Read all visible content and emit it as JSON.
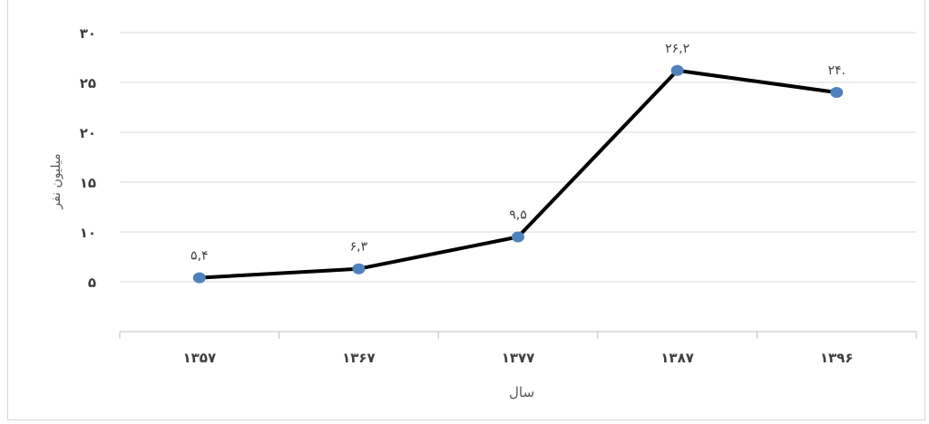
{
  "chart_data": {
    "type": "line",
    "categories": [
      "۱۳۵۷",
      "۱۳۶۷",
      "۱۳۷۷",
      "۱۳۸۷",
      "۱۳۹۶"
    ],
    "series": [
      {
        "values": [
          5.4,
          6.3,
          9.5,
          26.2,
          24
        ],
        "data_labels": [
          "۵,۴",
          "۶,۳",
          "۹,۵",
          "۲۶,۲",
          "۲۴."
        ]
      }
    ],
    "y_ticks": [
      {
        "value": 5,
        "label": "۵"
      },
      {
        "value": 10,
        "label": "۱۰"
      },
      {
        "value": 15,
        "label": "۱۵"
      },
      {
        "value": 20,
        "label": "۲۰"
      },
      {
        "value": 25,
        "label": "۲۵"
      },
      {
        "value": 30,
        "label": "۳۰"
      }
    ],
    "ylim": [
      0,
      30
    ],
    "xlabel": "سال",
    "ylabel": "میلیون نفر",
    "grid": true,
    "legend": "none",
    "colors": {
      "line": "#000000",
      "marker": "#4f81bd",
      "grid": "#d9d9d9",
      "text": "#404040"
    }
  }
}
